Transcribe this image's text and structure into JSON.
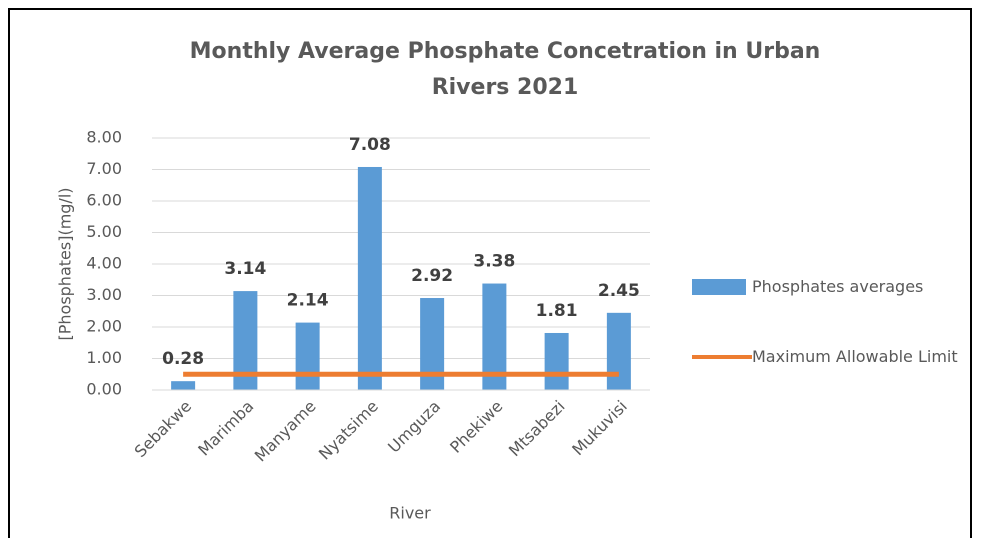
{
  "chart_data": {
    "type": "bar",
    "title": "Monthly Average Phosphate Concetration in Urban Rivers 2021",
    "x_label": "River",
    "y_label": "[Phosphates](mg/l)",
    "categories": [
      "Sebakwe",
      "Marimba",
      "Manyame",
      "Nyatsime",
      "Umguza",
      "Phekiwe",
      "Mtsabezi",
      "Mukuvisi"
    ],
    "series": [
      {
        "name": "Phosphates averages",
        "type": "bar",
        "color": "#5b9bd5",
        "values": [
          0.28,
          3.14,
          2.14,
          7.08,
          2.92,
          3.38,
          1.81,
          2.45
        ]
      },
      {
        "name": "Maximum Allowable Limit",
        "type": "line",
        "color": "#ed7d31",
        "values": [
          0.5,
          0.5,
          0.5,
          0.5,
          0.5,
          0.5,
          0.5,
          0.5
        ]
      }
    ],
    "ylim": [
      0,
      8
    ],
    "yticks": [
      {
        "value": 0,
        "label": "0.00"
      },
      {
        "value": 1,
        "label": "1.00"
      },
      {
        "value": 2,
        "label": "2.00"
      },
      {
        "value": 3,
        "label": "3.00"
      },
      {
        "value": 4,
        "label": "4.00"
      },
      {
        "value": 5,
        "label": "5.00"
      },
      {
        "value": 6,
        "label": "6.00"
      },
      {
        "value": 7,
        "label": "7.00"
      },
      {
        "value": 8,
        "label": "8.00"
      }
    ],
    "grid": true,
    "legend": "right"
  }
}
